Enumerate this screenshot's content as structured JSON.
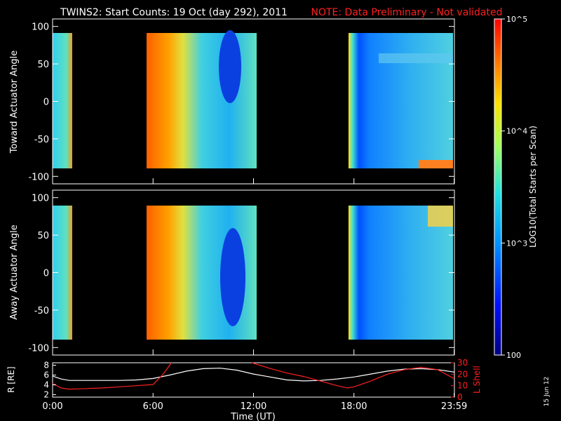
{
  "header": {
    "title": "TWINS2: Start Counts: 19 Oct (day 292), 2011",
    "note": "NOTE: Data Preliminary - Not validated",
    "note_color": "#ff2020"
  },
  "footer": {
    "xlabel": "Time (UT)",
    "date_stamp": "15 Jun 12"
  },
  "chart_data": [
    {
      "type": "heatmap",
      "panel": "top",
      "ylabel": "Toward Actuator Angle",
      "ylim": [
        -110,
        110
      ],
      "yticks": [
        100,
        50,
        0,
        -50,
        -100
      ],
      "xlim_hours": [
        0,
        24
      ],
      "data_coverage_hours": [
        [
          0.0,
          0.9
        ],
        [
          5.8,
          12.1
        ],
        [
          17.9,
          23.99
        ]
      ],
      "angle_coverage": [
        -88,
        90
      ],
      "color_scale": "log10",
      "clim": [
        100,
        100000
      ]
    },
    {
      "type": "heatmap",
      "panel": "middle",
      "ylabel": "Away Actuator Angle",
      "ylim": [
        -110,
        110
      ],
      "yticks": [
        100,
        50,
        0,
        -50,
        -100
      ],
      "xlim_hours": [
        0,
        24
      ],
      "data_coverage_hours": [
        [
          0.0,
          0.9
        ],
        [
          5.8,
          12.1
        ],
        [
          17.9,
          23.99
        ]
      ],
      "angle_coverage": [
        -88,
        90
      ],
      "color_scale": "log10",
      "clim": [
        100,
        100000
      ]
    },
    {
      "type": "line",
      "panel": "bottom",
      "xlim_hours": [
        0,
        24
      ],
      "xticks": [
        "0:00",
        "6:00",
        "12:00",
        "18:00",
        "23:59"
      ],
      "y_left": {
        "label": "R [RE]",
        "ticks": [
          8,
          6,
          4,
          2
        ],
        "ylim": [
          1.5,
          8.5
        ]
      },
      "y_right": {
        "label": "L Shell",
        "ticks": [
          30,
          20,
          10,
          0
        ],
        "ylim": [
          0,
          30
        ],
        "color": "#ff2020"
      },
      "series": [
        {
          "color": "#ffffff",
          "x": [
            0,
            0.5,
            1,
            2,
            3,
            4,
            5,
            6,
            7,
            8,
            9,
            10,
            11,
            12,
            13,
            14,
            15,
            16,
            17,
            18,
            19,
            20,
            21,
            22,
            23,
            24
          ],
          "y": [
            5.8,
            5.2,
            4.9,
            4.9,
            4.9,
            4.9,
            5.0,
            5.3,
            6.0,
            6.8,
            7.3,
            7.4,
            7.0,
            6.2,
            5.6,
            5.0,
            4.8,
            4.9,
            5.2,
            5.6,
            6.2,
            6.8,
            7.2,
            7.3,
            7.1,
            6.6
          ]
        },
        {
          "color": "#ff2020",
          "x": [
            0,
            0.5,
            1,
            2,
            3,
            4,
            5,
            6,
            6.6,
            7.1
          ],
          "y": [
            12,
            8,
            7,
            7.5,
            8,
            9,
            10,
            11,
            20,
            30
          ]
        },
        {
          "color": "#ff2020",
          "x": [
            11.9,
            13,
            14,
            15,
            16,
            17,
            17.6,
            18,
            19,
            20,
            21,
            22,
            23,
            24
          ],
          "y": [
            30,
            25,
            21,
            18,
            14,
            10,
            8,
            9,
            14,
            20,
            24,
            26,
            24,
            16
          ]
        }
      ]
    }
  ],
  "colorbar": {
    "label": "LOG10(Total Starts per Scan)",
    "ticks": [
      {
        "label": "10^5",
        "value": 100000
      },
      {
        "label": "10^4",
        "value": 10000
      },
      {
        "label": "10^3",
        "value": 1000
      },
      {
        "label": "100",
        "value": 100
      }
    ]
  }
}
